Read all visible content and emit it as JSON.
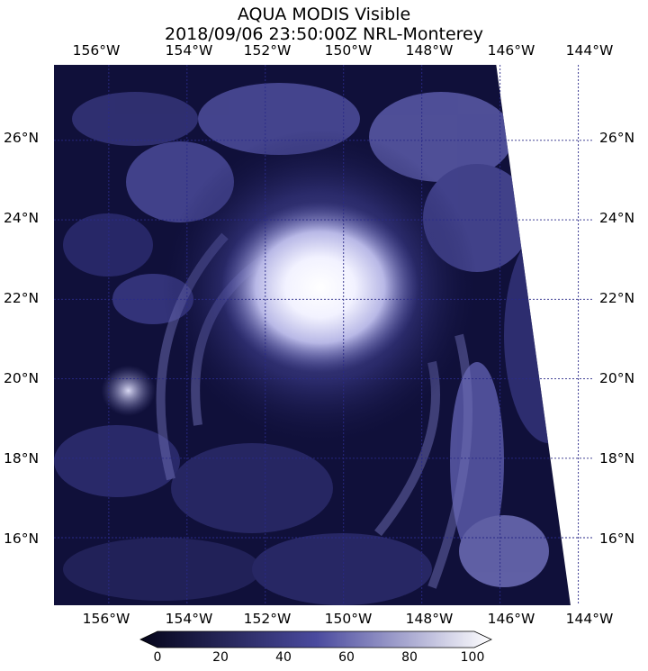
{
  "title": {
    "line1": "AQUA MODIS Visible",
    "line2": "2018/09/06 23:50:00Z NRL-Monterey"
  },
  "map": {
    "lon_labels": [
      "156°W",
      "154°W",
      "152°W",
      "150°W",
      "148°W",
      "146°W",
      "144°W"
    ],
    "lat_labels": [
      "16°N",
      "18°N",
      "20°N",
      "22°N",
      "24°N",
      "26°N"
    ],
    "lon_values": [
      -156,
      -154,
      -152,
      -150,
      -148,
      -146,
      -144
    ],
    "lat_values": [
      16,
      18,
      20,
      22,
      24,
      26
    ],
    "lon_range": [
      -157.4,
      -143.6
    ],
    "lat_range": [
      14.3,
      27.9
    ],
    "swath_edge_lon_top": -146.1,
    "swath_edge_lon_bottom": -144.2,
    "storm_center": {
      "lon": -150.6,
      "lat": 22.3
    },
    "grid_color": "#2a2a88",
    "gridlines": "dashed"
  },
  "colorbar": {
    "labels": [
      "0",
      "20",
      "40",
      "60",
      "80",
      "100"
    ],
    "values": [
      0,
      20,
      40,
      60,
      80,
      100
    ],
    "color_low": "#05051a",
    "color_mid": "#4a4a9e",
    "color_high": "#ffffff"
  }
}
